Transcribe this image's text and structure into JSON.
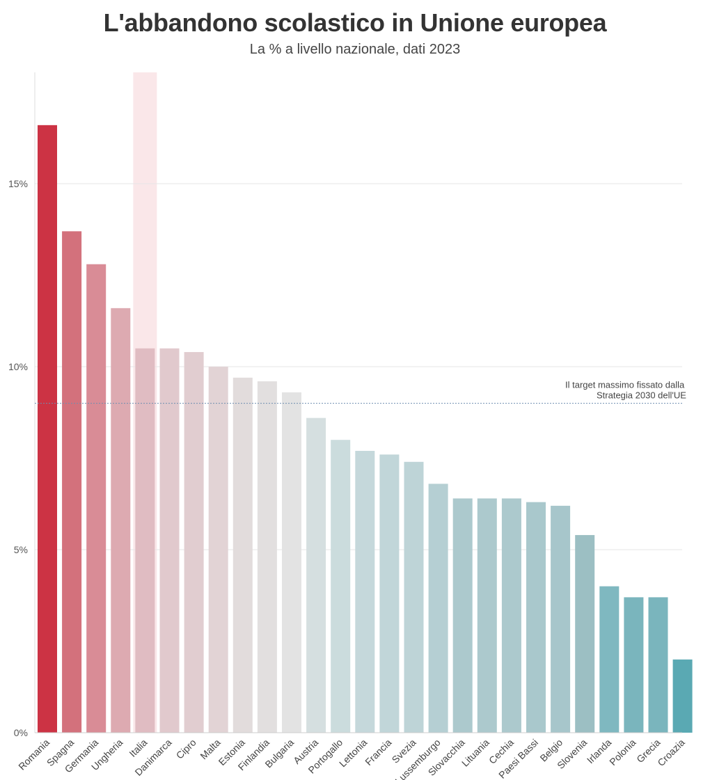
{
  "title": "L'abbandono scolastico in Unione europea",
  "subtitle": "La % a livello nazionale, dati 2023",
  "chart_data": {
    "type": "bar",
    "title": "L'abbandono scolastico in Unione europea",
    "subtitle": "La % a livello nazionale, dati 2023",
    "xlabel": "",
    "ylabel": "",
    "ylim": [
      0,
      18
    ],
    "yticks": [
      0,
      5,
      10,
      15
    ],
    "ytick_labels": [
      "0%",
      "5%",
      "10%",
      "15%"
    ],
    "grid": true,
    "highlight_category": "Italia",
    "categories": [
      "Romania",
      "Spagna",
      "Germania",
      "Ungheria",
      "Italia",
      "Danimarca",
      "Cipro",
      "Malta",
      "Estonia",
      "Finlandia",
      "Bulgaria",
      "Austria",
      "Portogallo",
      "Lettonia",
      "Francia",
      "Svezia",
      "Lussemburgo",
      "Slovacchia",
      "Lituania",
      "Cechia",
      "Paesi Bassi",
      "Belgio",
      "Slovenia",
      "Irlanda",
      "Polonia",
      "Grecia",
      "Croazia"
    ],
    "values": [
      16.6,
      13.7,
      12.8,
      11.6,
      10.5,
      10.5,
      10.4,
      10.0,
      9.7,
      9.6,
      9.3,
      8.6,
      8.0,
      7.7,
      7.6,
      7.4,
      6.8,
      6.4,
      6.4,
      6.4,
      6.3,
      6.2,
      5.4,
      4.0,
      3.7,
      3.7,
      2.0
    ],
    "colors": [
      "#cc3344",
      "#d3717c",
      "#d98c96",
      "#ddaab1",
      "#e0bcc2",
      "#e1c9cd",
      "#e1cdd0",
      "#e2d3d5",
      "#e2dcdc",
      "#e2dfdf",
      "#e3e3e3",
      "#d5dfe0",
      "#cbdcdd",
      "#c5d8db",
      "#c1d6d9",
      "#bed4d7",
      "#b5cfd3",
      "#acc9cd",
      "#acc9cd",
      "#acc9cd",
      "#a9c8cc",
      "#a7c6cb",
      "#9cbfc3",
      "#7fb8c0",
      "#7ab5bd",
      "#7ab5bd",
      "#5aa9b3"
    ],
    "highlight_color": "#fae7e9",
    "reference_line": {
      "value": 9,
      "label_line1": "Il target massimo fissato dalla",
      "label_line2": "Strategia 2030 dell'UE",
      "color": "#6f8fb0"
    }
  }
}
